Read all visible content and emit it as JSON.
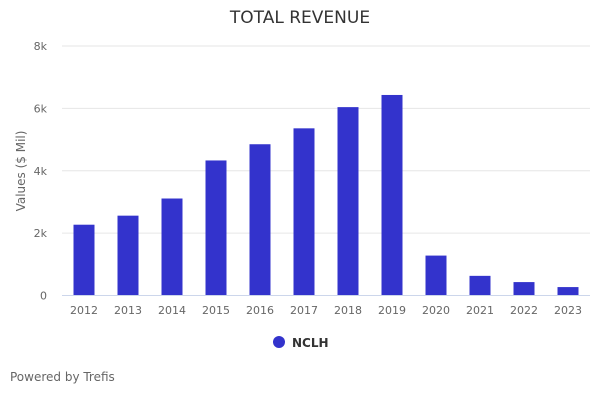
{
  "chart_data": {
    "type": "bar",
    "title": "TOTAL REVENUE",
    "xlabel": "",
    "ylabel": "Values ($ Mil)",
    "ylim": [
      0,
      8000
    ],
    "yticks": [
      0,
      2000,
      4000,
      6000,
      8000
    ],
    "ytick_labels": [
      "0",
      "2k",
      "4k",
      "6k",
      "8k"
    ],
    "grid": true,
    "categories": [
      "2012",
      "2013",
      "2014",
      "2015",
      "2016",
      "2017",
      "2018",
      "2019",
      "2020",
      "2021",
      "2022",
      "2023"
    ],
    "series": [
      {
        "name": "NCLH",
        "color": "#3333cc",
        "values": [
          2270,
          2560,
          3110,
          4330,
          4850,
          5360,
          6040,
          6430,
          1280,
          630,
          430,
          270
        ]
      }
    ],
    "legend": {
      "position": "bottom-center",
      "entries": [
        "NCLH"
      ]
    }
  },
  "footer": {
    "text": "Powered by Trefis"
  }
}
